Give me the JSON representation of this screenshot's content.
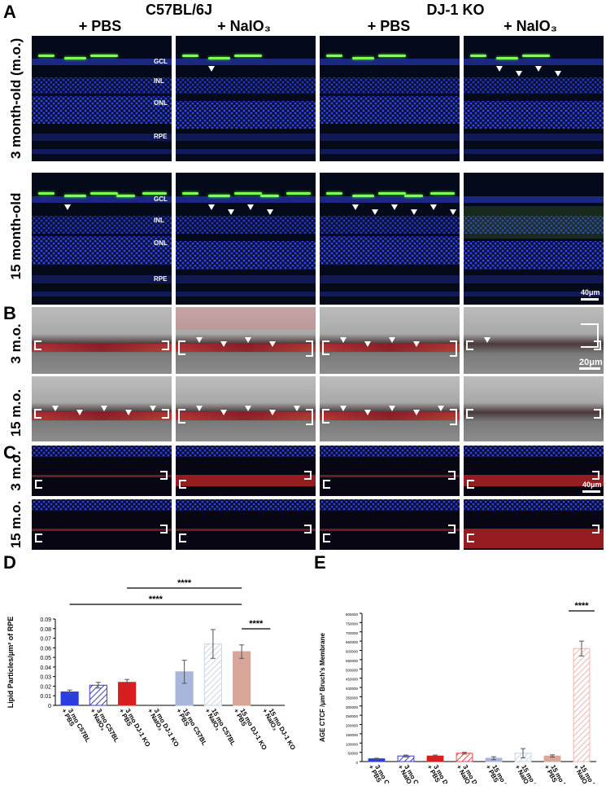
{
  "panel_letters": {
    "a": "A",
    "b": "B",
    "c": "C",
    "d": "D",
    "e": "E"
  },
  "groups": {
    "left": "C57BL/6J",
    "right": "DJ-1 KO"
  },
  "columns": [
    "+ PBS",
    "+ NaIO₃",
    "+ PBS",
    "+ NaIO₃"
  ],
  "panelA": {
    "rows": [
      "3 month-old (m.o.)",
      "15 month-old"
    ],
    "layer_labels": [
      "GCL",
      "INL",
      "ONL",
      "RPE"
    ],
    "scale": "40μm"
  },
  "panelB": {
    "rows": [
      "3 m.o.",
      "15 m.o."
    ],
    "scale": "20μm"
  },
  "panelC": {
    "rows": [
      "3 m.o.",
      "15 m.o."
    ],
    "scale": "40μm"
  },
  "chart_data": [
    {
      "type": "bar",
      "panel": "D",
      "ylabel": "Lipid Particles/μm² of RPE",
      "ylim": [
        0,
        0.09
      ],
      "yticks": [
        "0",
        "0.01",
        "0.02",
        "0.03",
        "0.04",
        "0.05",
        "0.06",
        "0.07",
        "0.08",
        "0.09"
      ],
      "categories": [
        "3 mo C57BL + PBS",
        "3 mo C57BL + NaIO₃",
        "3 mo DJ-1 KO + PBS",
        "3 mo DJ-1 KO + NaIO₃",
        "15 mo C57BL + PBS",
        "15 mo C57BL + NaIO₃",
        "15 mo DJ-1 KO + PBS",
        "15 mo DJ-1 KO + NaIO₃"
      ],
      "values": [
        0.014,
        0.021,
        0.024,
        null,
        0.035,
        0.064,
        0.056,
        null
      ],
      "errors": [
        0.002,
        0.003,
        0.003,
        null,
        0.012,
        0.015,
        0.007,
        null
      ],
      "colors": [
        "#2b3fe0",
        "#3a3cc8",
        "#d81e1e",
        "#ffffff",
        "#a9b6dc",
        "#c9d6e8",
        "#d9a79a",
        "#ffffff"
      ],
      "hatched": [
        false,
        true,
        false,
        false,
        false,
        true,
        false,
        false
      ],
      "significance": [
        {
          "from": 0,
          "to": 6,
          "label": "****"
        },
        {
          "from": 2,
          "to": 6,
          "label": "****"
        },
        {
          "from": 6,
          "to": 7,
          "label": "****"
        }
      ]
    },
    {
      "type": "bar",
      "panel": "E",
      "ylabel": "AGE CTCF /μm² Bruch's Membrane",
      "ylim": [
        0,
        800000
      ],
      "yticks": [
        "0",
        "50000",
        "100000",
        "150000",
        "200000",
        "250000",
        "300000",
        "350000",
        "400000",
        "450000",
        "500000",
        "550000",
        "600000",
        "650000",
        "700000",
        "750000",
        "800000"
      ],
      "categories": [
        "3 mo C57BL + PBS",
        "3 mo C57BL + NaIO₃",
        "3 mo DJ-1 KO + PBS",
        "3 mo DJ-1 KO + NaIO₃",
        "15 mo C57BL + PBS",
        "15 mo C57BL + NaIO₃",
        "15 mo DJ-1 KO + PBS",
        "15 mo DJ-1 KO + NaIO₃"
      ],
      "values": [
        15000,
        30000,
        30000,
        45000,
        18000,
        45000,
        30000,
        610000
      ],
      "errors": [
        3000,
        5000,
        5000,
        5000,
        8000,
        25000,
        6000,
        40000
      ],
      "colors": [
        "#2b3fe0",
        "#3a3cc8",
        "#d81e1e",
        "#e84a4a",
        "#a9b6dc",
        "#c9d6e8",
        "#d9a79a",
        "#f0b5b0"
      ],
      "hatched": [
        false,
        true,
        false,
        true,
        false,
        true,
        false,
        true
      ],
      "significance": [
        {
          "from": 7,
          "to": 7,
          "label": "****"
        }
      ]
    }
  ]
}
